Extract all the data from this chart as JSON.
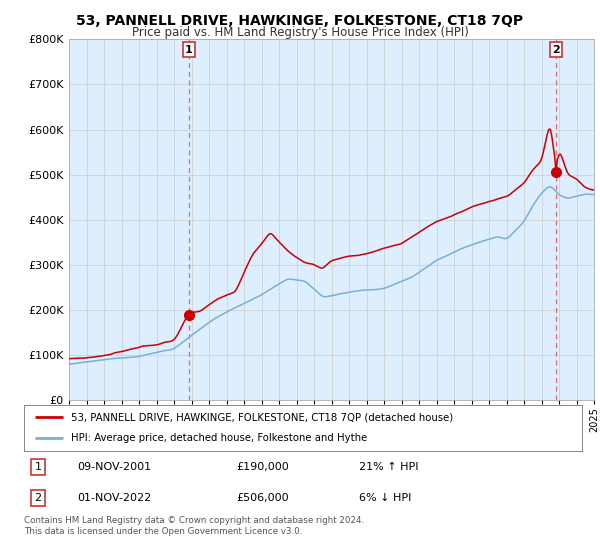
{
  "title": "53, PANNELL DRIVE, HAWKINGE, FOLKESTONE, CT18 7QP",
  "subtitle": "Price paid vs. HM Land Registry's House Price Index (HPI)",
  "ylim": [
    0,
    800000
  ],
  "xlim_start": 1995,
  "xlim_end": 2025,
  "sale1_x": 2001.86,
  "sale1_y": 190000,
  "sale1_label": "1",
  "sale2_x": 2022.83,
  "sale2_y": 506000,
  "sale2_label": "2",
  "hpi_line_color": "#7aafd4",
  "price_line_color": "#cc0000",
  "sale_marker_color": "#cc0000",
  "vline_color": "#e07070",
  "chart_bg_color": "#ddeeff",
  "legend_line1": "53, PANNELL DRIVE, HAWKINGE, FOLKESTONE, CT18 7QP (detached house)",
  "legend_line2": "HPI: Average price, detached house, Folkestone and Hythe",
  "note1_label": "1",
  "note1_date": "09-NOV-2001",
  "note1_price": "£190,000",
  "note1_hpi": "21% ↑ HPI",
  "note2_label": "2",
  "note2_date": "01-NOV-2022",
  "note2_price": "£506,000",
  "note2_hpi": "6% ↓ HPI",
  "footer": "Contains HM Land Registry data © Crown copyright and database right 2024.\nThis data is licensed under the Open Government Licence v3.0.",
  "background_color": "#ffffff",
  "grid_color": "#cccccc"
}
